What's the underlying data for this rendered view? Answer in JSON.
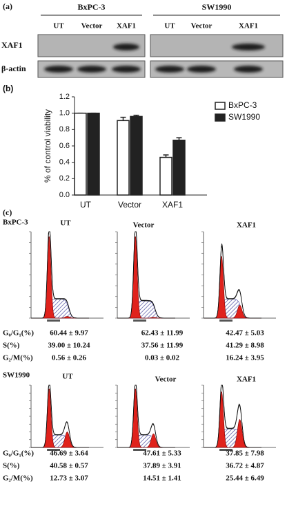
{
  "panel_a": {
    "label": "(a)",
    "groups": [
      {
        "name": "BxPC-3",
        "lanes": [
          "UT",
          "Vector",
          "XAF1"
        ]
      },
      {
        "name": "SW1990",
        "lanes": [
          "UT",
          "Vector",
          "XAF1"
        ]
      }
    ],
    "rows": [
      "XAF1",
      "β-actin"
    ]
  },
  "chart_data": {
    "type": "bar",
    "panel_label": "(b)",
    "ylabel": "% of control viability",
    "categories": [
      "UT",
      "Vector",
      "XAF1"
    ],
    "series": [
      {
        "name": "BxPC-3",
        "color": "#ffffff",
        "values": [
          1.0,
          0.91,
          0.46
        ],
        "errors": [
          0,
          0.04,
          0.03
        ]
      },
      {
        "name": "SW1990",
        "color": "#222222",
        "values": [
          1.0,
          0.96,
          0.67
        ],
        "errors": [
          0,
          0.015,
          0.03
        ]
      }
    ],
    "ylim": [
      0,
      1.2
    ],
    "yticks": [
      {
        "value": 0,
        "label": "0.0"
      },
      0.2,
      0.4,
      0.6,
      0.8,
      {
        "value": 1,
        "label": "1.0"
      },
      1.2
    ],
    "legend": "upper right"
  },
  "panel_c": {
    "label": "(c)",
    "blocks": [
      {
        "name": "BxPC-3",
        "columns": [
          "UT",
          "Vector",
          "XAF1"
        ],
        "rows": [
          {
            "label": "G₀/G₁(%)",
            "values": [
              "60.44 ± 9.97",
              "62.43 ± 11.99",
              "42.47 ± 5.03"
            ]
          },
          {
            "label": "S(%)",
            "values": [
              "39.00 ± 10.24",
              "37.56 ± 11.99",
              "41.29 ± 8.98"
            ]
          },
          {
            "label": "G₂/M(%)",
            "values": [
              "0.56 ± 0.26",
              "0.03 ± 0.02",
              "16.24 ± 3.95"
            ]
          }
        ]
      },
      {
        "name": "SW1990",
        "columns": [
          "UT",
          "Vector",
          "XAF1"
        ],
        "rows": [
          {
            "label": "G₀/G₁(%)",
            "values": [
              "46.69 ± 3.64",
              "47.61 ± 5.33",
              "37.85 ± 7.98"
            ]
          },
          {
            "label": "S(%)",
            "values": [
              "40.58 ± 0.57",
              "37.89 ± 3.91",
              "36.72 ± 4.87"
            ]
          },
          {
            "label": "G₂/M(%)",
            "values": [
              "12.73 ± 3.07",
              "14.51 ± 1.41",
              "25.44 ± 6.49"
            ]
          }
        ]
      }
    ]
  }
}
